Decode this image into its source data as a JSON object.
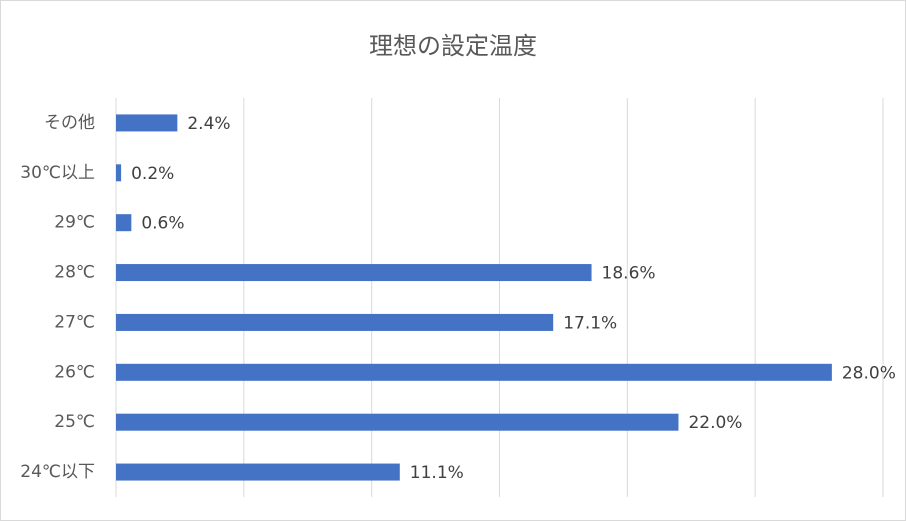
{
  "chart_data": {
    "type": "bar",
    "orientation": "horizontal",
    "title": "理想の設定温度",
    "categories": [
      "その他",
      "30℃以上",
      "29℃",
      "28℃",
      "27℃",
      "26℃",
      "25℃",
      "24℃以下"
    ],
    "values": [
      2.4,
      0.2,
      0.6,
      18.6,
      17.1,
      28.0,
      22.0,
      11.1
    ],
    "labels": [
      "2.4%",
      "0.2%",
      "0.6%",
      "18.6%",
      "17.1%",
      "28.0%",
      "22.0%",
      "11.1%"
    ],
    "xlim": [
      0,
      30
    ],
    "grid": true,
    "legend": "none",
    "bar_color": "#4472c4"
  }
}
